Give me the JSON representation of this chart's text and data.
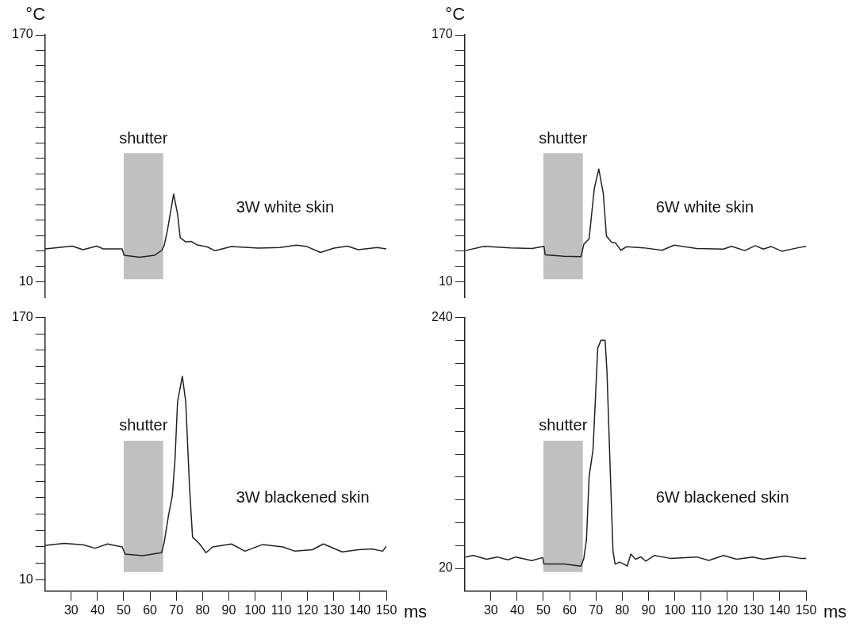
{
  "chart_data": [
    {
      "type": "line",
      "ylabel": "°C",
      "annotations": [
        "3W white skin"
      ],
      "bands": [
        {
          "axis": "x",
          "from": 50,
          "to": 65,
          "label": "shutter",
          "color": "#c0c0c0"
        }
      ],
      "xlim": [
        20,
        150
      ],
      "ylim": [
        0,
        170
      ],
      "yticks": [
        10,
        {
          "value": 20,
          "label": null
        },
        {
          "value": 30,
          "label": null
        },
        {
          "value": 40,
          "label": null
        },
        {
          "value": 50,
          "label": null
        },
        {
          "value": 60,
          "label": null
        },
        {
          "value": 70,
          "label": null
        },
        {
          "value": 80,
          "label": null
        },
        {
          "value": 90,
          "label": null
        },
        {
          "value": 100,
          "label": null
        },
        {
          "value": 110,
          "label": null
        },
        {
          "value": 120,
          "label": null
        },
        {
          "value": 130,
          "label": null
        },
        {
          "value": 140,
          "label": null
        },
        {
          "value": 150,
          "label": null
        },
        {
          "value": 160,
          "label": null
        },
        170
      ],
      "tick_labels": "y",
      "color": "#222222",
      "x": [
        20.1,
        30.4,
        34.5,
        39.7,
        42.2,
        49.4,
        50.1,
        56.1,
        61.8,
        64.5,
        65.4,
        66.6,
        69,
        70.5,
        71.5,
        73.6,
        75.6,
        77.7,
        81.8,
        84.8,
        91,
        101.3,
        109.5,
        115.7,
        119.8,
        124.9,
        130.1,
        135.2,
        139.3,
        146.5,
        150
      ],
      "values": [
        31.5,
        33.3,
        31,
        33.3,
        31.5,
        31.5,
        27.4,
        26.1,
        27.4,
        30.6,
        33.7,
        43.2,
        67,
        54,
        38.7,
        36,
        36.4,
        34.2,
        32.8,
        30.3,
        33,
        32,
        32.4,
        33.9,
        33,
        29.2,
        32,
        33.3,
        31,
        32.4,
        31.5
      ]
    },
    {
      "type": "line",
      "ylabel": "°C",
      "annotations": [
        "6W white skin"
      ],
      "bands": [
        {
          "axis": "x",
          "from": 50,
          "to": 65,
          "label": "shutter",
          "color": "#c0c0c0"
        }
      ],
      "xlim": [
        20,
        150
      ],
      "ylim": [
        0,
        170
      ],
      "yticks": [
        10,
        {
          "value": 20,
          "label": null
        },
        {
          "value": 30,
          "label": null
        },
        {
          "value": 40,
          "label": null
        },
        {
          "value": 50,
          "label": null
        },
        {
          "value": 60,
          "label": null
        },
        {
          "value": 70,
          "label": null
        },
        {
          "value": 80,
          "label": null
        },
        {
          "value": 90,
          "label": null
        },
        {
          "value": 100,
          "label": null
        },
        {
          "value": 110,
          "label": null
        },
        {
          "value": 120,
          "label": null
        },
        {
          "value": 130,
          "label": null
        },
        {
          "value": 140,
          "label": null
        },
        {
          "value": 150,
          "label": null
        },
        {
          "value": 160,
          "label": null
        },
        170
      ],
      "tick_labels": "y",
      "color": "#222222",
      "x": [
        20.3,
        27.4,
        37.5,
        45.6,
        50.2,
        50.7,
        57.8,
        64.3,
        65.4,
        67.4,
        69.4,
        71.1,
        72.8,
        74,
        76,
        77.5,
        79.5,
        81.6,
        88.2,
        95.2,
        99.8,
        108.4,
        118.6,
        121.6,
        126.7,
        130.7,
        133.7,
        136.8,
        140.8,
        146.9,
        150
      ],
      "values": [
        30.4,
        33.2,
        32.2,
        31.8,
        33.2,
        27.7,
        26.8,
        26.5,
        34.5,
        38,
        70.8,
        83.2,
        67.3,
        39.8,
        35.7,
        35.3,
        30.6,
        32.9,
        32.2,
        30.6,
        33.9,
        31.8,
        31.4,
        33.2,
        30.4,
        33.6,
        31.4,
        33,
        30,
        32.2,
        33.2
      ]
    },
    {
      "type": "line",
      "xlabel": "ms",
      "annotations": [
        "3W blackened skin"
      ],
      "bands": [
        {
          "axis": "x",
          "from": 50,
          "to": 65,
          "label": "shutter",
          "color": "#c0c0c0"
        }
      ],
      "xlim": [
        20,
        150
      ],
      "ylim": [
        3,
        170
      ],
      "xticks": [
        30,
        40,
        50,
        60,
        70,
        80,
        90,
        100,
        110,
        120,
        130,
        140,
        150
      ],
      "yticks": [
        10,
        {
          "value": 20,
          "label": null
        },
        {
          "value": 30,
          "label": null
        },
        {
          "value": 40,
          "label": null
        },
        {
          "value": 50,
          "label": null
        },
        {
          "value": 60,
          "label": null
        },
        {
          "value": 70,
          "label": null
        },
        {
          "value": 80,
          "label": null
        },
        {
          "value": 90,
          "label": null
        },
        {
          "value": 100,
          "label": null
        },
        {
          "value": 110,
          "label": null
        },
        {
          "value": 120,
          "label": null
        },
        {
          "value": 130,
          "label": null
        },
        {
          "value": 140,
          "label": null
        },
        {
          "value": 150,
          "label": null
        },
        {
          "value": 160,
          "label": null
        },
        170
      ],
      "color": "#222222",
      "x": [
        20.1,
        27.3,
        34.5,
        39.1,
        43.8,
        49.4,
        50.5,
        57.2,
        64.4,
        65.4,
        67,
        68.5,
        69.5,
        70.5,
        72.3,
        73.6,
        75.1,
        76.2,
        78.7,
        81.3,
        83.9,
        91,
        96.2,
        102.9,
        110.6,
        115.2,
        121.9,
        126,
        133.2,
        139.4,
        144.5,
        148.6,
        150
      ],
      "values": [
        31,
        32.2,
        31.3,
        29.2,
        31.8,
        30,
        25.6,
        24.7,
        26.5,
        32.7,
        48.8,
        61.4,
        82.9,
        118.7,
        134.2,
        118.7,
        65,
        36,
        32.2,
        26.5,
        30,
        31.8,
        27.4,
        31.5,
        30,
        27.4,
        28.3,
        31.8,
        27,
        28.3,
        28.8,
        27.4,
        30.4
      ]
    },
    {
      "type": "line",
      "xlabel": "ms",
      "annotations": [
        "6W blackened skin"
      ],
      "bands": [
        {
          "axis": "x",
          "from": 50,
          "to": 65,
          "label": "shutter",
          "color": "#c0c0c0"
        }
      ],
      "xlim": [
        20,
        150
      ],
      "ylim": [
        0,
        240
      ],
      "xticks": [
        30,
        40,
        50,
        60,
        70,
        80,
        90,
        100,
        110,
        120,
        130,
        140,
        150
      ],
      "yticks": [
        20,
        {
          "value": 40,
          "label": null
        },
        {
          "value": 60,
          "label": null
        },
        {
          "value": 80,
          "label": null
        },
        {
          "value": 100,
          "label": null
        },
        {
          "value": 120,
          "label": null
        },
        {
          "value": 140,
          "label": null
        },
        {
          "value": 160,
          "label": null
        },
        {
          "value": 180,
          "label": null
        },
        {
          "value": 200,
          "label": null
        },
        {
          "value": 220,
          "label": null
        },
        240
      ],
      "color": "#222222",
      "x": [
        20.3,
        23.3,
        28.4,
        32.4,
        36.5,
        39.5,
        45.6,
        49.7,
        50.2,
        57.8,
        64.3,
        65.4,
        66.4,
        67.4,
        68.9,
        70.7,
        71.9,
        73.5,
        74.2,
        75.5,
        76.5,
        77.3,
        79,
        80.6,
        81.9,
        83.3,
        85.1,
        87.1,
        89,
        92.2,
        98.3,
        108.4,
        113,
        118.6,
        123.6,
        129.7,
        133.7,
        141.9,
        147.9,
        150
      ],
      "values": [
        30,
        31.3,
        28,
        30,
        27.5,
        30,
        26.8,
        29.5,
        23.8,
        23.8,
        22,
        28.8,
        45.1,
        100.3,
        124.1,
        213.2,
        220,
        220,
        193.1,
        102.8,
        35.1,
        23.8,
        25.5,
        23.8,
        22,
        32.5,
        28,
        30,
        26.3,
        31.3,
        28.8,
        30,
        27,
        31.3,
        28,
        30,
        28,
        30.8,
        28.8,
        28.8
      ]
    }
  ]
}
